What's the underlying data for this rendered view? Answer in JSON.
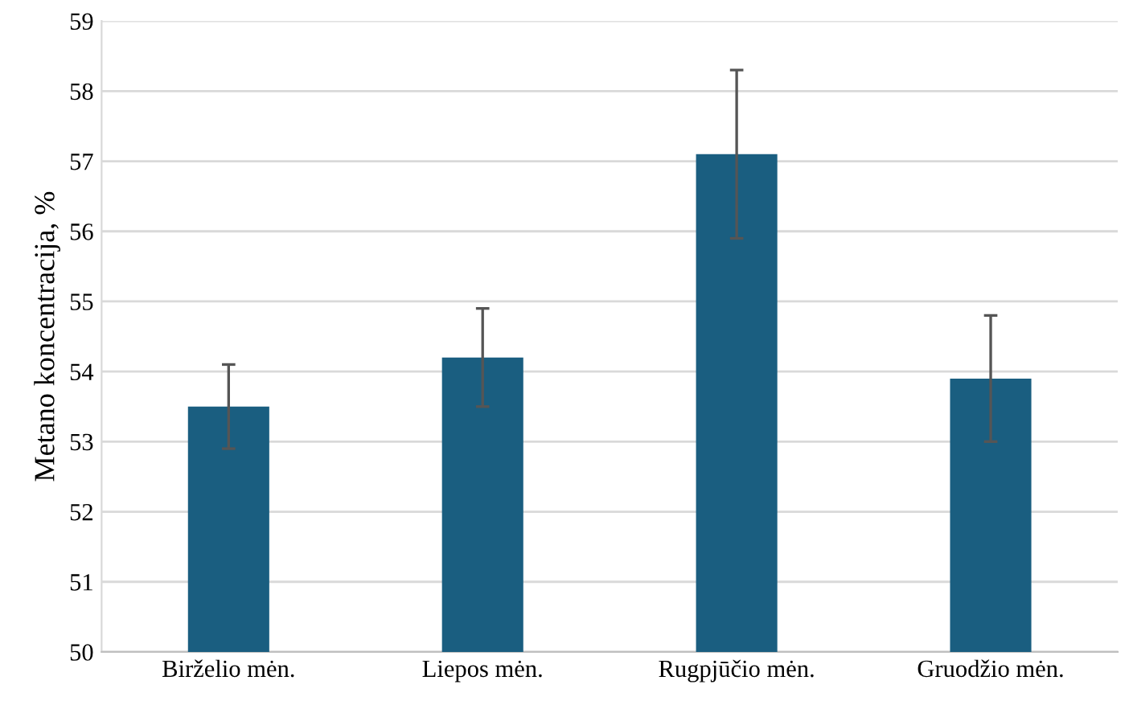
{
  "chart_data": {
    "type": "bar",
    "ylabel": "Metano koncentracija, %",
    "categories": [
      "Birželio mėn.",
      "Liepos mėn.",
      "Rugpjūčio mėn.",
      "Gruodžio mėn."
    ],
    "values": [
      53.5,
      54.2,
      57.1,
      53.9
    ],
    "errors": [
      0.6,
      0.7,
      1.2,
      0.9
    ],
    "color": "#1a5e80",
    "ylim": [
      50,
      59
    ],
    "yticks": [
      50,
      51,
      52,
      53,
      54,
      55,
      56,
      57,
      58,
      59
    ],
    "grid": "y",
    "legend": false
  }
}
